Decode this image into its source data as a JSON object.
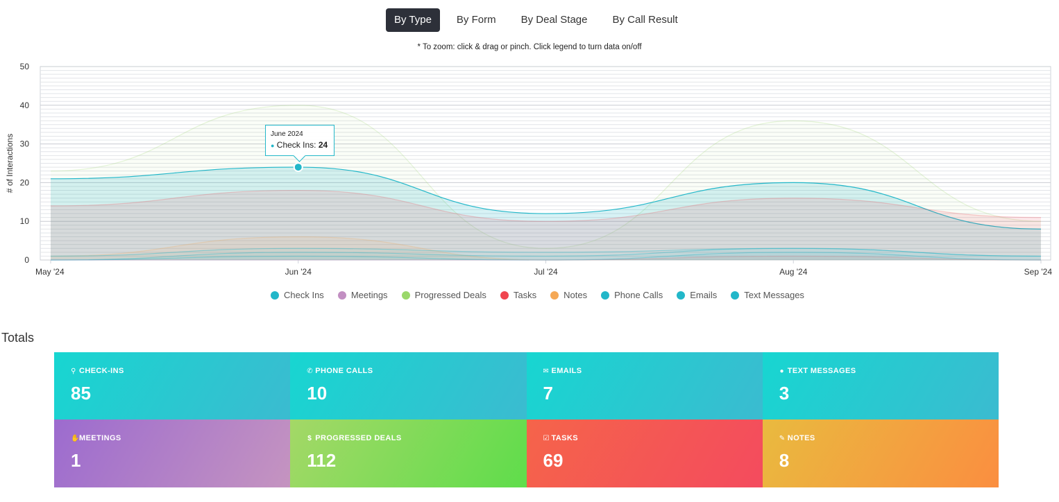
{
  "tabs": [
    {
      "label": "By Type",
      "active": true
    },
    {
      "label": "By Form",
      "active": false
    },
    {
      "label": "By Deal Stage",
      "active": false
    },
    {
      "label": "By Call Result",
      "active": false
    }
  ],
  "zoom_note": "* To zoom: click & drag or pinch. Click legend to turn data on/off",
  "tooltip": {
    "title": "June 2024",
    "series": "Check Ins",
    "value": "24"
  },
  "legend": [
    {
      "label": "Check Ins",
      "color": "#22b7c9"
    },
    {
      "label": "Meetings",
      "color": "#c28fc2"
    },
    {
      "label": "Progressed Deals",
      "color": "#9ad86a"
    },
    {
      "label": "Tasks",
      "color": "#f0454f"
    },
    {
      "label": "Notes",
      "color": "#f5a855"
    },
    {
      "label": "Phone Calls",
      "color": "#22b7c9"
    },
    {
      "label": "Emails",
      "color": "#22b7c9"
    },
    {
      "label": "Text Messages",
      "color": "#22b7c9"
    }
  ],
  "chart_data": {
    "type": "area",
    "ylabel": "# of Interactions",
    "ylim": [
      0,
      50
    ],
    "yticks": [
      0,
      10,
      20,
      30,
      40,
      50
    ],
    "categories": [
      "May '24",
      "Jun '24",
      "Jul '24",
      "Aug '24",
      "Sep '24"
    ],
    "series": [
      {
        "name": "Progressed Deals",
        "color": "#9ad86a",
        "values": [
          23,
          40,
          3,
          36,
          10
        ]
      },
      {
        "name": "Check Ins",
        "color": "#22b7c9",
        "values": [
          21,
          24,
          12,
          20,
          8
        ]
      },
      {
        "name": "Tasks",
        "color": "#f0454f",
        "values": [
          14,
          18,
          10,
          16,
          11
        ]
      },
      {
        "name": "Notes",
        "color": "#f5a855",
        "values": [
          1,
          6,
          0,
          1,
          0
        ]
      },
      {
        "name": "Phone Calls",
        "color": "#22b7c9",
        "values": [
          1,
          3,
          2,
          3,
          1
        ]
      },
      {
        "name": "Emails",
        "color": "#22b7c9",
        "values": [
          0,
          2,
          1,
          3,
          1
        ]
      },
      {
        "name": "Text Messages",
        "color": "#22b7c9",
        "values": [
          0,
          1,
          0,
          2,
          0
        ]
      },
      {
        "name": "Meetings",
        "color": "#c28fc2",
        "values": [
          0,
          0,
          0,
          1,
          0
        ]
      }
    ]
  },
  "totals": {
    "title": "Totals",
    "cards": [
      {
        "label": "CHECK-INS",
        "value": "85",
        "icon": "map-pin-icon",
        "glyph": "⚲",
        "grad": [
          "#17d6d1",
          "#3bbbd0"
        ]
      },
      {
        "label": "PHONE CALLS",
        "value": "10",
        "icon": "phone-icon",
        "glyph": "✆",
        "grad": [
          "#17d6d1",
          "#3bbbd0"
        ]
      },
      {
        "label": "EMAILS",
        "value": "7",
        "icon": "envelope-icon",
        "glyph": "✉",
        "grad": [
          "#17d6d1",
          "#3bbbd0"
        ]
      },
      {
        "label": "TEXT MESSAGES",
        "value": "3",
        "icon": "comment-icon",
        "glyph": "●",
        "grad": [
          "#17d6d1",
          "#3bbbd0"
        ]
      },
      {
        "label": "MEETINGS",
        "value": "1",
        "icon": "handshake-icon",
        "glyph": "✋",
        "grad": [
          "#9c6bcf",
          "#c594c0"
        ]
      },
      {
        "label": "PROGRESSED DEALS",
        "value": "112",
        "icon": "dollar-icon",
        "glyph": "$",
        "grad": [
          "#a4d867",
          "#5fdd4b"
        ]
      },
      {
        "label": "TASKS",
        "value": "69",
        "icon": "check-square-icon",
        "glyph": "☑",
        "grad": [
          "#f5644a",
          "#f44b5e"
        ]
      },
      {
        "label": "NOTES",
        "value": "8",
        "icon": "pencil-icon",
        "glyph": "✎",
        "grad": [
          "#e9ba3f",
          "#fb8e40"
        ]
      }
    ]
  }
}
